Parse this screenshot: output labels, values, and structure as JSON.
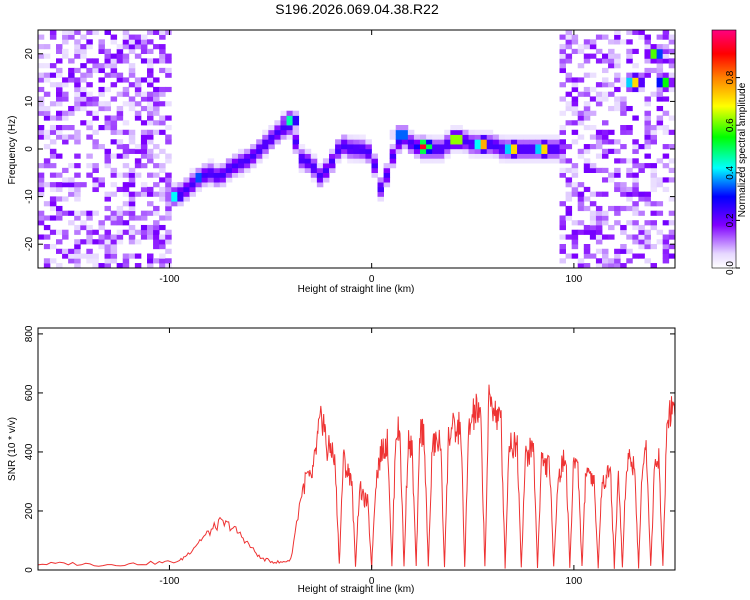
{
  "figure_title": "S196.2026.069.04.38.R22",
  "chart_data": [
    {
      "type": "heatmap",
      "title": "S196.2026.069.04.38.R22",
      "xlabel": "Height of straight line (km)",
      "ylabel": "Frequency (Hz)",
      "xlim": [
        -165,
        150
      ],
      "ylim": [
        -25,
        25
      ],
      "xticks": [
        -100,
        0,
        100
      ],
      "yticks": [
        -20,
        -10,
        0,
        10,
        20
      ],
      "colorbar": {
        "label": "Normalized spectral amplitude",
        "range": [
          0,
          1
        ],
        "ticks": [
          0.0,
          0.2,
          0.4,
          0.6,
          0.8
        ],
        "tick_labels": [
          "0.0",
          "0.2",
          "0.4",
          "0.6",
          "0.8"
        ],
        "colors": [
          "#ffffff",
          "#e6d8ff",
          "#8000ff",
          "#0000ff",
          "#00ffff",
          "#00ff00",
          "#ffff00",
          "#ff8000",
          "#ff0000",
          "#ff0080"
        ]
      },
      "noise_regions_x": [
        [
          -165,
          -98
        ],
        [
          92,
          150
        ]
      ],
      "ridge": {
        "x": [
          -100,
          -95,
          -90,
          -85,
          -80,
          -75,
          -70,
          -65,
          -60,
          -55,
          -50,
          -45,
          -40,
          -35,
          -30,
          -25,
          -20,
          -15,
          -10,
          -5,
          0,
          5,
          10,
          15,
          20,
          25,
          30,
          35,
          40,
          45,
          50,
          55,
          60,
          65,
          70,
          75,
          80,
          85,
          90
        ],
        "y": [
          -10,
          -9.5,
          -8,
          -6,
          -5,
          -6,
          -4,
          -3,
          -2,
          0,
          2,
          4,
          5,
          -2,
          -3,
          -6,
          -3,
          1,
          0,
          0,
          -1,
          -9,
          -2,
          3,
          1,
          0,
          0,
          0,
          2,
          2,
          1,
          1,
          1,
          0,
          0,
          0,
          0,
          0,
          0
        ]
      },
      "hot_spots": [
        {
          "x": -97,
          "y": -10,
          "v": 0.5
        },
        {
          "x": -85,
          "y": -6,
          "v": 0.4
        },
        {
          "x": -40,
          "y": 6,
          "v": 0.55
        },
        {
          "x": 15,
          "y": 3,
          "v": 0.5
        },
        {
          "x": 26,
          "y": 0.5,
          "v": 0.95
        },
        {
          "x": 42,
          "y": 2,
          "v": 0.9
        },
        {
          "x": 55,
          "y": 1,
          "v": 0.9
        },
        {
          "x": 70,
          "y": 0,
          "v": 0.85
        },
        {
          "x": 85,
          "y": 0,
          "v": 0.85
        },
        {
          "x": 130,
          "y": 14,
          "v": 0.85
        },
        {
          "x": 140,
          "y": 20,
          "v": 0.7
        },
        {
          "x": 145,
          "y": 14,
          "v": 0.65
        }
      ]
    },
    {
      "type": "line",
      "xlabel": "Height of straight line (km)",
      "ylabel": "SNR (10 * v/v)",
      "xlim": [
        -165,
        150
      ],
      "ylim": [
        0,
        820
      ],
      "xticks": [
        -100,
        0,
        100
      ],
      "yticks": [
        0,
        200,
        400,
        600,
        800
      ],
      "series": [
        {
          "name": "SNR",
          "color": "#ee3333",
          "x": [
            -165,
            -150,
            -135,
            -120,
            -105,
            -95,
            -90,
            -85,
            -80,
            -75,
            -70,
            -65,
            -60,
            -55,
            -50,
            -45,
            -40,
            -35,
            -32,
            -30,
            -28,
            -26,
            -24,
            -22,
            -20,
            -18,
            -16,
            -14,
            -12,
            -10,
            -8,
            -6,
            -4,
            -2,
            0,
            2,
            4,
            6,
            8,
            10,
            12,
            14,
            16,
            18,
            20,
            22,
            24,
            26,
            28,
            30,
            32,
            34,
            36,
            38,
            40,
            42,
            44,
            46,
            48,
            50,
            52,
            54,
            56,
            58,
            60,
            62,
            64,
            66,
            68,
            70,
            72,
            74,
            76,
            78,
            80,
            82,
            84,
            86,
            88,
            90,
            92,
            94,
            96,
            98,
            100,
            102,
            104,
            106,
            108,
            110,
            112,
            114,
            116,
            118,
            120,
            122,
            124,
            126,
            128,
            130,
            132,
            134,
            136,
            138,
            140,
            142,
            144,
            146,
            148,
            150
          ],
          "y": [
            20,
            22,
            18,
            20,
            25,
            30,
            60,
            100,
            130,
            160,
            150,
            120,
            80,
            40,
            30,
            25,
            35,
            250,
            320,
            300,
            380,
            480,
            520,
            400,
            420,
            350,
            20,
            380,
            330,
            320,
            15,
            280,
            240,
            230,
            10,
            300,
            380,
            420,
            430,
            10,
            480,
            460,
            10,
            440,
            400,
            10,
            480,
            460,
            10,
            420,
            430,
            440,
            10,
            450,
            480,
            460,
            500,
            10,
            470,
            520,
            540,
            500,
            10,
            580,
            560,
            520,
            500,
            10,
            440,
            420,
            430,
            10,
            380,
            400,
            420,
            10,
            380,
            350,
            360,
            10,
            300,
            350,
            390,
            10,
            380,
            360,
            10,
            350,
            330,
            300,
            10,
            300,
            320,
            350,
            10,
            330,
            10,
            370,
            380,
            350,
            10,
            380,
            400,
            10,
            360,
            380,
            10,
            500,
            560,
            520
          ]
        }
      ]
    }
  ]
}
